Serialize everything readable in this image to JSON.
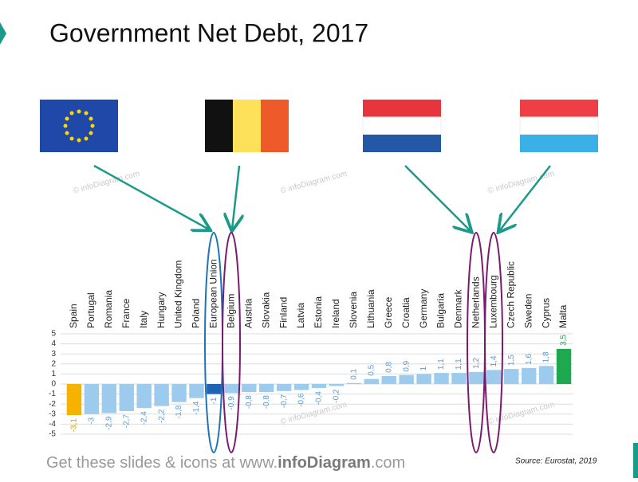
{
  "chart_data": {
    "type": "bar",
    "title": "Government Net Debt, 2017",
    "categories": [
      "Spain",
      "Portugal",
      "Romania",
      "France",
      "Italy",
      "Hungary",
      "United Kingdom",
      "Poland",
      "European Union",
      "Belgium",
      "Austria",
      "Slovakia",
      "Finland",
      "Latvia",
      "Estonia",
      "Ireland",
      "Slovenia",
      "Lithuania",
      "Greece",
      "Croatia",
      "Germany",
      "Bulgaria",
      "Denmark",
      "Netherlands",
      "Luxembourg",
      "Czech Republic",
      "Sweden",
      "Cyprus",
      "Malta"
    ],
    "values": [
      -3.1,
      -3,
      -2.9,
      -2.7,
      -2.4,
      -2.2,
      -1.8,
      -1.4,
      -1,
      -0.9,
      -0.8,
      -0.8,
      -0.7,
      -0.6,
      -0.4,
      -0.2,
      0.1,
      0.5,
      0.8,
      0.9,
      1,
      1.1,
      1.1,
      1.2,
      1.4,
      1.5,
      1.6,
      1.8,
      3.5
    ],
    "value_labels": [
      "-3,1",
      "-3",
      "-2,9",
      "-2,7",
      "-2,4",
      "-2,2",
      "-1,8",
      "-1,4",
      "-1",
      "-0,9",
      "-0,8",
      "-0,8",
      "-0,7",
      "-0,6",
      "-0,4",
      "-0,2",
      "0,1",
      "0,5",
      "0,8",
      "0,9",
      "1",
      "1,1",
      "1,1",
      "1,2",
      "1,4",
      "1,5",
      "1,6",
      "1,8",
      "3,5"
    ],
    "colors": [
      "#f5b300",
      "#9dcbee",
      "#9dcbee",
      "#9dcbee",
      "#9dcbee",
      "#9dcbee",
      "#9dcbee",
      "#9dcbee",
      "#1d64b4",
      "#9dcbee",
      "#9dcbee",
      "#9dcbee",
      "#9dcbee",
      "#9dcbee",
      "#9dcbee",
      "#9dcbee",
      "#9dcbee",
      "#9dcbee",
      "#9dcbee",
      "#9dcbee",
      "#9dcbee",
      "#9dcbee",
      "#9dcbee",
      "#9dcbee",
      "#9dcbee",
      "#9dcbee",
      "#9dcbee",
      "#9dcbee",
      "#1ea84f"
    ],
    "label_colors": [
      "#d69a00",
      "#5b9bd5",
      "#5b9bd5",
      "#5b9bd5",
      "#5b9bd5",
      "#5b9bd5",
      "#5b9bd5",
      "#5b9bd5",
      "#5b9bd5",
      "#5b9bd5",
      "#5b9bd5",
      "#5b9bd5",
      "#5b9bd5",
      "#5b9bd5",
      "#5b9bd5",
      "#5b9bd5",
      "#5b9bd5",
      "#5b9bd5",
      "#5b9bd5",
      "#5b9bd5",
      "#5b9bd5",
      "#5b9bd5",
      "#5b9bd5",
      "#5b9bd5",
      "#5b9bd5",
      "#5b9bd5",
      "#5b9bd5",
      "#5b9bd5",
      "#1e9a48"
    ],
    "ylim": [
      -5,
      5
    ],
    "yticks": [
      -5,
      -4,
      -3,
      -2,
      -1,
      0,
      1,
      2,
      3,
      4,
      5
    ],
    "grid": true
  },
  "footer": [
    "Get these slides & icons at www.",
    "infoDiagram",
    ".com"
  ],
  "source": "Source: Eurostat, 2019",
  "watermark": "© infoDiagram.com"
}
